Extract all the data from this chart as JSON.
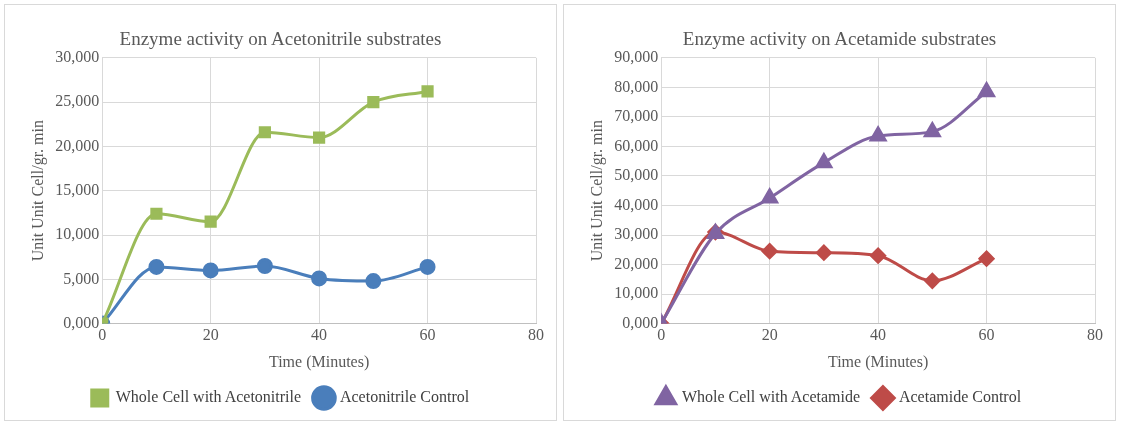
{
  "chart_data": [
    {
      "type": "line",
      "title": "Enzyme activity on Acetonitrile substrates",
      "xlabel": "Time (Minutes)",
      "ylabel": "Unit Unit Cell/gr. min",
      "x": [
        0,
        10,
        20,
        30,
        40,
        50,
        60
      ],
      "series": [
        {
          "name": "Acetonitrile Control",
          "color": "#4a7ebb",
          "marker": "circle",
          "values": [
            0,
            6.4,
            6.0,
            6.5,
            5.1,
            4.8,
            6.4
          ]
        },
        {
          "name": "Whole Cell with Acetonitrile",
          "color": "#9bbb59",
          "marker": "square",
          "values": [
            0,
            12.4,
            11.5,
            21.6,
            21.0,
            25.0,
            26.2
          ]
        }
      ],
      "xlim": [
        0,
        80
      ],
      "xticks": [
        0,
        20,
        40,
        60,
        80
      ],
      "ylim": [
        0,
        30
      ],
      "yticks": [
        {
          "value": 0,
          "label": "0,000"
        },
        {
          "value": 5,
          "label": "5,000"
        },
        {
          "value": 10,
          "label": "10,000"
        },
        {
          "value": 15,
          "label": "15,000"
        },
        {
          "value": 20,
          "label": "20,000"
        },
        {
          "value": 25,
          "label": "25,000"
        },
        {
          "value": 30,
          "label": "30,000"
        }
      ],
      "grid": true,
      "legend": "bottom",
      "line_style": "solid"
    },
    {
      "type": "line",
      "title": "Enzyme activity on Acetamide substrates",
      "xlabel": "Time (Minutes)",
      "ylabel": "Unit Unit Cell/gr. min",
      "x": [
        0,
        10,
        20,
        30,
        40,
        50,
        60
      ],
      "series": [
        {
          "name": "Acetamide Control",
          "color": "#be4b48",
          "marker": "diamond",
          "values": [
            0,
            31,
            24.5,
            24,
            23,
            14.5,
            22
          ]
        },
        {
          "name": "Whole Cell with Acetamide",
          "color": "#8064a2",
          "marker": "triangle",
          "values": [
            0,
            30.5,
            42.5,
            54.5,
            63.5,
            65,
            78.5
          ]
        }
      ],
      "xlim": [
        0,
        80
      ],
      "xticks": [
        0,
        20,
        40,
        60,
        80
      ],
      "ylim": [
        0,
        90
      ],
      "yticks": [
        {
          "value": 0,
          "label": "0,000"
        },
        {
          "value": 10,
          "label": "10,000"
        },
        {
          "value": 20,
          "label": "20,000"
        },
        {
          "value": 30,
          "label": "30,000"
        },
        {
          "value": 40,
          "label": "40,000"
        },
        {
          "value": 50,
          "label": "50,000"
        },
        {
          "value": 60,
          "label": "60,000"
        },
        {
          "value": 70,
          "label": "70,000"
        },
        {
          "value": 80,
          "label": "80,000"
        },
        {
          "value": 90,
          "label": "90,000"
        }
      ],
      "grid": true,
      "legend": "bottom",
      "line_style": "solid"
    }
  ]
}
